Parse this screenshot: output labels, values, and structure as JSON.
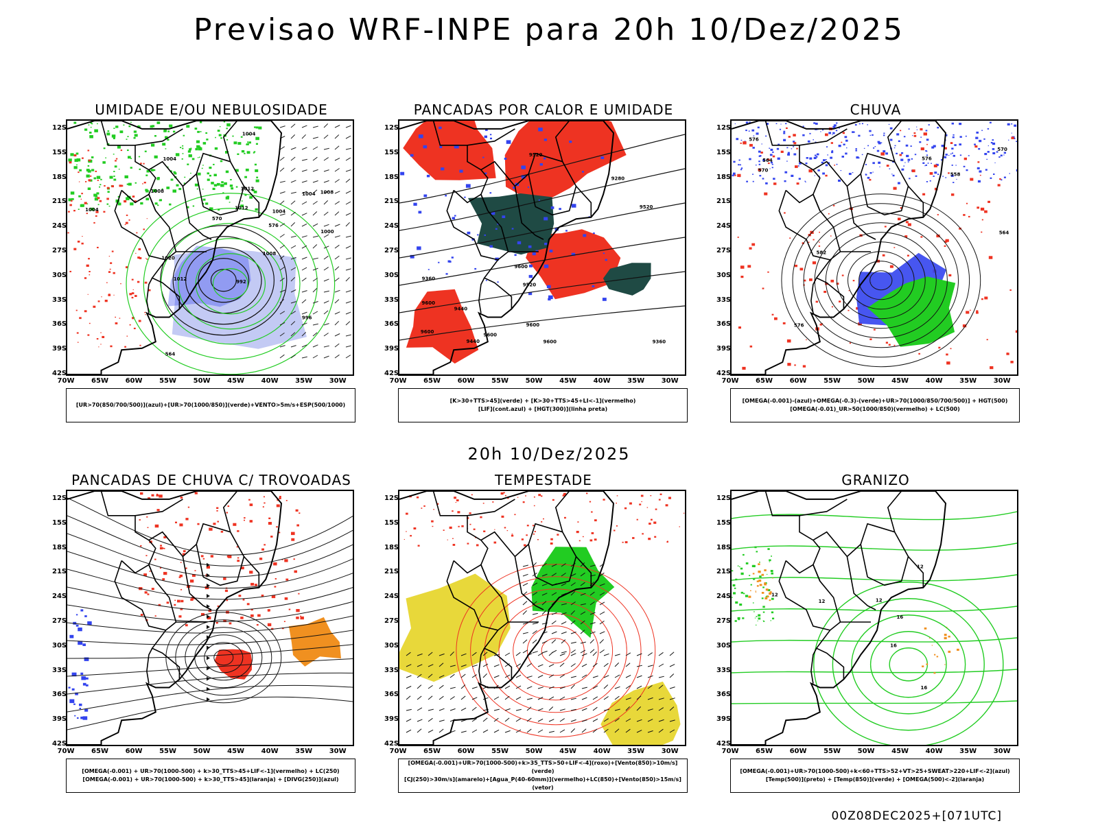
{
  "header": {
    "title": "Previsao WRF-INPE  para 20h 10/Dez/2025",
    "subtitle": "20h 10/Dez/2025"
  },
  "axes": {
    "lat_labels": [
      "12S",
      "15S",
      "18S",
      "21S",
      "24S",
      "27S",
      "30S",
      "33S",
      "36S",
      "39S",
      "42S"
    ],
    "lon_labels": [
      "70W",
      "65W",
      "60W",
      "55W",
      "50W",
      "45W",
      "40W",
      "35W",
      "30W"
    ]
  },
  "colors": {
    "blue": "#3344ee",
    "lightblue": "#aab4f0",
    "green": "#22cc22",
    "red": "#ee3322",
    "orange": "#f09020",
    "yellow": "#e8d83a",
    "darkteal": "#1f4a44"
  },
  "panels": [
    {
      "title": "UMIDADE E/OU NEBULOSIDADE",
      "legend": [
        "[UR>70(850/700/500)](azul)+[UR>70(1000/850)](verde)+VENTO>5m/s+ESP(500/1000)"
      ],
      "labels": [
        "1008",
        "1012",
        "1012",
        "1004",
        "1004",
        "1008",
        "1004",
        "992",
        "996",
        "1000",
        "1008",
        "1004",
        "1004",
        "1020",
        "1012",
        "570",
        "576",
        "564"
      ]
    },
    {
      "title": "PANCADAS POR CALOR E UMIDADE",
      "legend": [
        "[K>30+TTS>45](verde) + [K>30+TTS>45+LI<-1](vermelho)",
        "[LIF](cont.azul) + [HGT(300)](linha preta)"
      ],
      "labels": [
        "9600",
        "9600",
        "9600",
        "9600",
        "9520",
        "9520",
        "9440",
        "9440",
        "9360",
        "9360",
        "9280",
        "9600",
        "9520",
        "9600"
      ]
    },
    {
      "title": "CHUVA",
      "legend": [
        "[OMEGA(-0.001)-(azul)+OMEGA(-0.3)-(verde)+UR>70(1000/850/700/500)] + HGT(500)",
        "[OMEGA(-0.01)_UR>50(1000/850)(vermelho) + LC(500)"
      ],
      "labels": [
        "582",
        "576",
        "576",
        "570",
        "570",
        "564",
        "564",
        "558",
        "576"
      ]
    },
    {
      "title": "PANCADAS DE CHUVA C/ TROVOADAS",
      "legend": [
        "[OMEGA(-0.001) + UR>70(1000-500) + k>30_TTS>45+LIF<-1](vermelho) + LC(250)",
        "[OMEGA(-0.001) + UR>70(1000-500) + k>30_TTS>45](laranja) + [DIVG(250)](azul)"
      ],
      "labels": []
    },
    {
      "title": "TEMPESTADE",
      "legend": [
        "[OMEGA(-0.001)+UR>70(1000-500)+k>35_TTS>50+LIF<-4](roxo)+[Vento(850)>10m/s](verde)",
        "[CJ(250)>30m/s](amarelo)+[Agua_P(40-60mm)](vermelho)+LC(850)+[Vento(850)>15m/s](vetor)"
      ],
      "labels": []
    },
    {
      "title": "GRANIZO",
      "legend": [
        "[OMEGA(-0.001)+UR>70(1000-500)+k<60+TTS>52+VT>25+SWEAT>220+LIF<-2](azul)",
        "[Temp(500)](preto) + [Temp(850)](verde) + [OMEGA(500)<-2](laranja)"
      ],
      "labels": [
        "12",
        "16",
        "16",
        "12",
        "12",
        "16",
        "12"
      ]
    }
  ],
  "footer": "00Z08DEC2025+[071UTC]"
}
